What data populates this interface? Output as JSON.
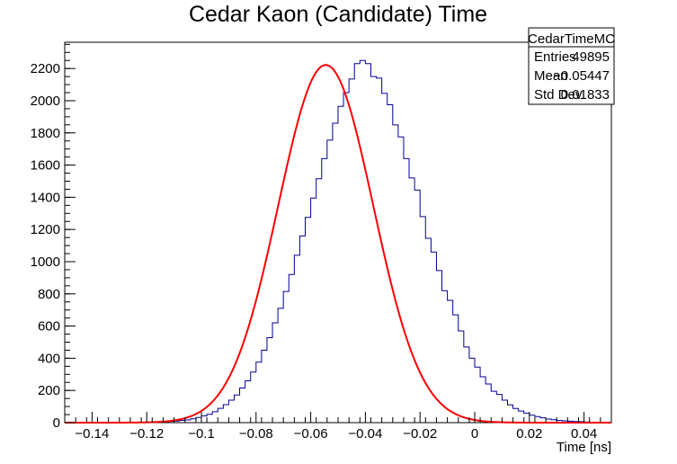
{
  "chart_data": {
    "type": "histogram",
    "title": "Cedar Kaon (Candidate) Time",
    "xlabel": "Time [ns]",
    "ylabel": "",
    "xlim": [
      -0.15,
      0.05
    ],
    "ylim": [
      0,
      2363
    ],
    "xticks": [
      -0.14,
      -0.12,
      -0.1,
      -0.08,
      -0.06,
      -0.04,
      -0.02,
      0,
      0.02,
      0.04
    ],
    "xtick_labels": [
      "−0.14",
      "−0.12",
      "−0.1",
      "−0.08",
      "−0.06",
      "−0.04",
      "−0.02",
      "0",
      "0.02",
      "0.04"
    ],
    "yticks": [
      0,
      200,
      400,
      600,
      800,
      1000,
      1200,
      1400,
      1600,
      1800,
      2000,
      2200
    ],
    "ytick_labels": [
      "0",
      "200",
      "400",
      "600",
      "800",
      "1000",
      "1200",
      "1400",
      "1600",
      "1800",
      "2000",
      "2200"
    ],
    "bin_edges_start": -0.15,
    "bin_width": 0.002,
    "counts": [
      0,
      0,
      0,
      0,
      0,
      0,
      0,
      0,
      0,
      0,
      0,
      0,
      0,
      0,
      1,
      1,
      3,
      4,
      5,
      8,
      10,
      14,
      17,
      24,
      32,
      42,
      52,
      68,
      89,
      112,
      140,
      172,
      215,
      260,
      314,
      376,
      450,
      528,
      620,
      710,
      815,
      920,
      1040,
      1160,
      1275,
      1395,
      1515,
      1640,
      1755,
      1860,
      1965,
      2050,
      2135,
      2230,
      2250,
      2230,
      2150,
      2140,
      2045,
      1975,
      1850,
      1775,
      1640,
      1520,
      1445,
      1280,
      1145,
      1060,
      945,
      820,
      760,
      670,
      570,
      470,
      400,
      345,
      285,
      240,
      195,
      175,
      140,
      110,
      88,
      72,
      58,
      46,
      38,
      30,
      22,
      18,
      14,
      11,
      9,
      7,
      6,
      4,
      3,
      2,
      1,
      1
    ],
    "fit": {
      "name": "gaus",
      "color": "#ff0000",
      "amplitude": 2222,
      "mean": -0.0545,
      "sigma": 0.0174
    },
    "line_color": "#000099",
    "stats": {
      "name": "CedarTimeMC",
      "rows": [
        {
          "label": "Entries",
          "value": "49895"
        },
        {
          "label": "Mean",
          "value": "−0.05447"
        },
        {
          "label": "Std Dev",
          "value": "0.01833"
        }
      ]
    }
  }
}
